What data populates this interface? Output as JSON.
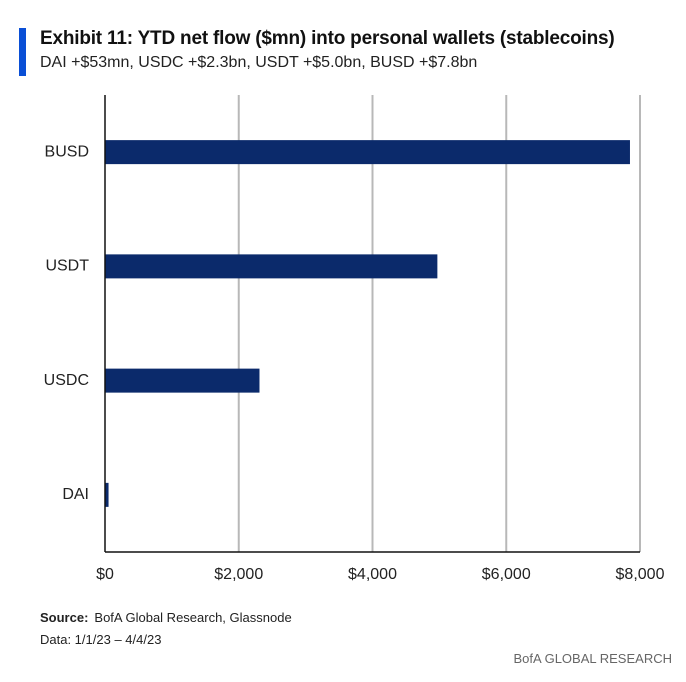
{
  "header": {
    "title": "Exhibit 11: YTD net flow ($mn) into personal wallets (stablecoins)",
    "subtitle": "DAI +$53mn, USDC +$2.3bn, USDT +$5.0bn, BUSD +$7.8bn"
  },
  "chart_data": {
    "type": "bar",
    "orientation": "horizontal",
    "categories": [
      "BUSD",
      "USDT",
      "USDC",
      "DAI"
    ],
    "values": [
      7850,
      4970,
      2310,
      53
    ],
    "xlim": [
      0,
      8000
    ],
    "xticks": [
      0,
      2000,
      4000,
      6000,
      8000
    ],
    "xtick_labels": [
      "$0",
      "$2,000",
      "$4,000",
      "$6,000",
      "$8,000"
    ],
    "grid": "vertical",
    "bar_color": "#0b2a6b",
    "grid_color": "#b8b8b8",
    "axis_color": "#111111",
    "legend": "none"
  },
  "footer": {
    "source_label": "Source:",
    "source_text": "BofA Global Research, Glassnode",
    "data_note": "Data: 1/1/23 – 4/4/23",
    "brand": "BofA GLOBAL RESEARCH"
  },
  "colors": {
    "accent": "#0a4fd6"
  }
}
